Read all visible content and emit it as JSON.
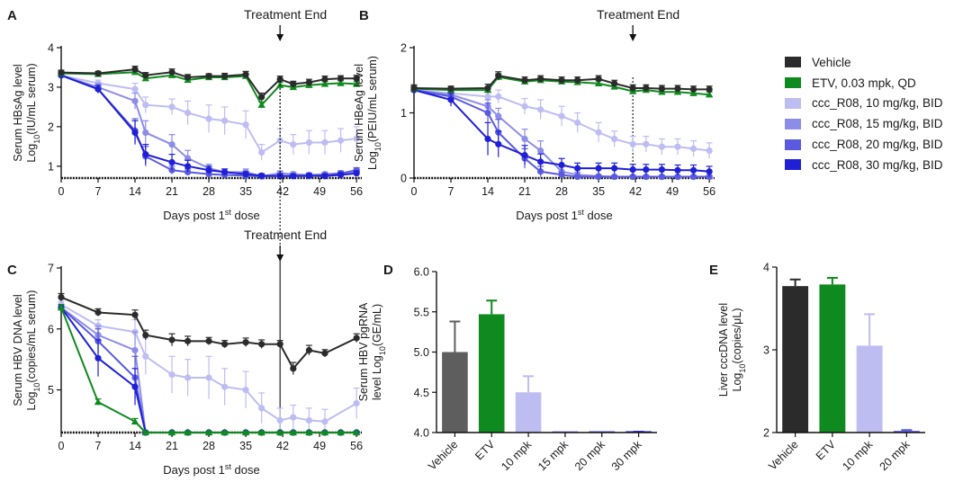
{
  "colors": {
    "vehicle": "#2b2b2b",
    "etv": "#0f8a1e",
    "mpk10": "#bdbdf2",
    "mpk15": "#8d8de8",
    "mpk20": "#5a5ae0",
    "mpk30": "#1f1fd6",
    "bar_vehicle": "#5e5e5e",
    "axis": "#111111"
  },
  "legend": [
    {
      "label": "Vehicle",
      "color_key": "vehicle"
    },
    {
      "label": "ETV, 0.03 mpk, QD",
      "color_key": "etv"
    },
    {
      "label": "ccc_R08, 10 mg/kg, BID",
      "color_key": "mpk10"
    },
    {
      "label": "ccc_R08, 15 mg/kg, BID",
      "color_key": "mpk15"
    },
    {
      "label": "ccc_R08, 20 mg/kg, BID",
      "color_key": "mpk20"
    },
    {
      "label": "ccc_R08, 30 mg/kg, BID",
      "color_key": "mpk30"
    }
  ],
  "chart_data": [
    {
      "id": "A",
      "panel_letter": "A",
      "type": "line",
      "ylabel_line1": "Serum HBsAg level",
      "ylabel_line2": [
        "Log",
        "10",
        "(IU/mL serum)"
      ],
      "xlabel": [
        "Days post 1",
        "st",
        " dose"
      ],
      "xticks": [
        0,
        7,
        14,
        21,
        28,
        35,
        42,
        49,
        56
      ],
      "yticks": [
        1,
        2,
        3,
        4
      ],
      "xlim": [
        0,
        57
      ],
      "ylim": [
        0.7,
        4
      ],
      "annotation": {
        "text": "Treatment End",
        "x": 41.5
      },
      "x": [
        0,
        7,
        12,
        14,
        16,
        18,
        21,
        24,
        28,
        31,
        35,
        38,
        41.5,
        44,
        47,
        50,
        53,
        56
      ],
      "series": [
        {
          "name": "Vehicle",
          "color_key": "vehicle",
          "values": [
            3.37,
            3.35,
            null,
            3.45,
            3.3,
            null,
            3.38,
            3.25,
            3.28,
            3.28,
            3.32,
            2.75,
            3.2,
            3.08,
            3.12,
            3.2,
            3.22,
            3.22
          ],
          "errors": [
            0.06,
            0.05,
            null,
            0.08,
            0.07,
            null,
            0.08,
            0.07,
            0.06,
            0.07,
            0.08,
            0.1,
            0.08,
            0.07,
            0.08,
            0.08,
            0.07,
            0.08
          ]
        },
        {
          "name": "ETV, 0.03 mpk, QD",
          "color_key": "etv",
          "values": [
            3.35,
            3.33,
            null,
            3.38,
            3.22,
            null,
            3.3,
            3.18,
            3.25,
            3.25,
            3.28,
            2.55,
            3.05,
            3.0,
            3.05,
            3.08,
            3.1,
            3.08
          ],
          "errors": [
            0.05,
            0.05,
            null,
            0.06,
            0.06,
            null,
            0.06,
            0.06,
            0.06,
            0.06,
            0.07,
            0.08,
            0.07,
            0.06,
            0.06,
            0.06,
            0.06,
            0.06
          ]
        },
        {
          "name": "ccc_R08, 10 mg/kg, BID",
          "color_key": "mpk10",
          "values": [
            3.3,
            3.1,
            null,
            2.95,
            2.55,
            null,
            2.5,
            2.35,
            2.2,
            2.15,
            2.05,
            1.35,
            1.65,
            1.55,
            1.6,
            1.6,
            1.65,
            1.7
          ],
          "errors": [
            0.06,
            0.08,
            null,
            0.15,
            0.2,
            null,
            0.2,
            0.3,
            0.35,
            0.35,
            0.35,
            0.2,
            0.3,
            0.25,
            0.3,
            0.3,
            0.3,
            0.3
          ]
        },
        {
          "name": "ccc_R08, 15 mg/kg, BID",
          "color_key": "mpk15",
          "values": [
            3.3,
            3.0,
            null,
            2.65,
            1.85,
            null,
            1.55,
            1.2,
            0.95,
            0.85,
            0.85,
            0.75,
            0.82,
            0.8,
            0.78,
            0.8,
            0.82,
            0.85
          ],
          "errors": [
            0.05,
            0.1,
            null,
            0.2,
            0.3,
            null,
            0.25,
            0.2,
            0.1,
            0.08,
            0.08,
            0.05,
            0.06,
            0.05,
            0.05,
            0.05,
            0.05,
            0.06
          ]
        },
        {
          "name": "ccc_R08, 20 mg/kg, BID",
          "color_key": "mpk20",
          "values": [
            3.3,
            2.95,
            null,
            1.9,
            1.25,
            null,
            0.9,
            0.85,
            0.8,
            0.78,
            0.76,
            0.74,
            0.76,
            0.75,
            0.75,
            0.77,
            0.82,
            0.9
          ],
          "errors": [
            0.05,
            0.1,
            null,
            0.3,
            0.25,
            null,
            0.1,
            0.08,
            0.06,
            0.05,
            0.05,
            0.04,
            0.05,
            0.05,
            0.05,
            0.05,
            0.06,
            0.06
          ]
        },
        {
          "name": "ccc_R08, 30 mg/kg, BID",
          "color_key": "mpk30",
          "values": [
            3.3,
            2.95,
            null,
            1.85,
            1.3,
            null,
            1.1,
            1.0,
            0.9,
            0.85,
            0.8,
            0.76,
            0.75,
            0.75,
            0.76,
            0.75,
            0.78,
            0.82
          ],
          "errors": [
            0.05,
            0.1,
            null,
            0.3,
            0.25,
            null,
            0.2,
            0.15,
            0.1,
            0.08,
            0.06,
            0.05,
            0.05,
            0.05,
            0.05,
            0.05,
            0.05,
            0.06
          ]
        }
      ]
    },
    {
      "id": "B",
      "panel_letter": "B",
      "type": "line",
      "ylabel_line1": "Serum HBeAg level",
      "ylabel_line2": [
        "Log",
        "10",
        "(PEIU/mL serum)"
      ],
      "xlabel": [
        "Days post 1",
        "st",
        " dose"
      ],
      "xticks": [
        0,
        7,
        14,
        21,
        28,
        35,
        42,
        49,
        56
      ],
      "yticks": [
        0,
        1,
        2
      ],
      "xlim": [
        0,
        57
      ],
      "ylim": [
        0,
        2
      ],
      "annotation": {
        "text": "Treatment End",
        "x": 41.5
      },
      "x": [
        0,
        7,
        12,
        14,
        16,
        18,
        21,
        24,
        28,
        31,
        35,
        38,
        41.5,
        44,
        47,
        50,
        53,
        56
      ],
      "series": [
        {
          "name": "Vehicle",
          "color_key": "vehicle",
          "values": [
            1.38,
            1.37,
            null,
            1.38,
            1.57,
            null,
            1.5,
            1.52,
            1.5,
            1.5,
            1.52,
            1.45,
            1.38,
            1.38,
            1.37,
            1.37,
            1.36,
            1.36
          ],
          "errors": [
            0.05,
            0.04,
            null,
            0.06,
            0.06,
            null,
            0.05,
            0.05,
            0.05,
            0.05,
            0.05,
            0.05,
            0.05,
            0.05,
            0.05,
            0.05,
            0.05,
            0.05
          ]
        },
        {
          "name": "ETV, 0.03 mpk, QD",
          "color_key": "etv",
          "values": [
            1.37,
            1.35,
            null,
            1.35,
            1.55,
            null,
            1.48,
            1.5,
            1.48,
            1.47,
            1.45,
            1.4,
            1.33,
            1.35,
            1.32,
            1.32,
            1.3,
            1.28
          ],
          "errors": [
            0.04,
            0.04,
            null,
            0.05,
            0.05,
            null,
            0.04,
            0.04,
            0.04,
            0.04,
            0.04,
            0.04,
            0.04,
            0.04,
            0.04,
            0.04,
            0.04,
            0.04
          ]
        },
        {
          "name": "ccc_R08, 10 mg/kg, BID",
          "color_key": "mpk10",
          "values": [
            1.35,
            1.3,
            null,
            1.25,
            1.25,
            null,
            1.1,
            1.05,
            0.95,
            0.85,
            0.7,
            0.6,
            0.52,
            0.52,
            0.48,
            0.48,
            0.45,
            0.42
          ],
          "errors": [
            0.05,
            0.06,
            null,
            0.08,
            0.1,
            null,
            0.12,
            0.15,
            0.15,
            0.15,
            0.15,
            0.12,
            0.12,
            0.12,
            0.12,
            0.12,
            0.12,
            0.12
          ]
        },
        {
          "name": "ccc_R08, 15 mg/kg, BID",
          "color_key": "mpk15",
          "values": [
            1.35,
            1.28,
            null,
            1.1,
            0.95,
            null,
            0.6,
            0.42,
            0.1,
            0.05,
            0.03,
            0.02,
            0.02,
            0.02,
            0.02,
            0.02,
            0.02,
            0.02
          ],
          "errors": [
            0.05,
            0.06,
            null,
            0.1,
            0.12,
            null,
            0.15,
            0.15,
            0.08,
            0.04,
            0.02,
            0.02,
            0.02,
            0.02,
            0.02,
            0.02,
            0.02,
            0.02
          ]
        },
        {
          "name": "ccc_R08, 20 mg/kg, BID",
          "color_key": "mpk20",
          "values": [
            1.35,
            1.25,
            null,
            1.0,
            0.7,
            null,
            0.3,
            0.1,
            0.05,
            0.02,
            0.02,
            0.02,
            0.02,
            0.02,
            0.02,
            0.02,
            0.02,
            0.02
          ],
          "errors": [
            0.05,
            0.08,
            null,
            0.15,
            0.2,
            null,
            0.15,
            0.08,
            0.04,
            0.02,
            0.02,
            0.02,
            0.02,
            0.02,
            0.02,
            0.02,
            0.02,
            0.02
          ]
        },
        {
          "name": "ccc_R08, 30 mg/kg, BID",
          "color_key": "mpk30",
          "values": [
            1.35,
            1.2,
            null,
            0.6,
            0.52,
            null,
            0.35,
            0.25,
            0.2,
            0.15,
            0.15,
            0.15,
            0.13,
            0.13,
            0.13,
            0.12,
            0.12,
            0.1
          ],
          "errors": [
            0.05,
            0.1,
            null,
            0.25,
            0.2,
            null,
            0.15,
            0.12,
            0.1,
            0.08,
            0.08,
            0.08,
            0.08,
            0.08,
            0.08,
            0.08,
            0.08,
            0.08
          ]
        }
      ]
    },
    {
      "id": "C",
      "panel_letter": "C",
      "type": "line",
      "ylabel_line1": "Serum HBV DNA level",
      "ylabel_line2": [
        "Log",
        "10",
        "(copies/mL serum)"
      ],
      "xlabel": [
        "Days post 1",
        "st",
        " dose"
      ],
      "xticks": [
        0,
        7,
        14,
        21,
        28,
        35,
        42,
        49,
        56
      ],
      "yticks": [
        5,
        6,
        7
      ],
      "xlim": [
        0,
        57
      ],
      "ylim": [
        4.3,
        7
      ],
      "annotation": {
        "text": "Treatment End",
        "x": 41.5
      },
      "x": [
        0,
        7,
        12,
        14,
        16,
        18,
        21,
        24,
        28,
        31,
        35,
        38,
        41.5,
        44,
        47,
        50,
        53,
        56
      ],
      "series": [
        {
          "name": "Vehicle",
          "color_key": "vehicle",
          "values": [
            6.52,
            6.27,
            null,
            6.23,
            5.9,
            null,
            5.82,
            5.8,
            5.8,
            5.75,
            5.78,
            5.75,
            5.75,
            5.35,
            5.65,
            5.6,
            null,
            5.85
          ],
          "errors": [
            0.06,
            0.06,
            null,
            0.08,
            0.08,
            null,
            0.1,
            0.08,
            0.06,
            0.06,
            0.07,
            0.07,
            0.06,
            0.1,
            0.08,
            0.06,
            null,
            0.07
          ]
        },
        {
          "name": "ETV, 0.03 mpk, QD",
          "color_key": "etv",
          "values": [
            6.35,
            4.8,
            null,
            4.48,
            4.3,
            null,
            4.3,
            4.3,
            4.3,
            4.3,
            4.3,
            4.3,
            4.3,
            4.3,
            4.3,
            4.3,
            4.3,
            4.3
          ],
          "errors": [
            0.05,
            0.05,
            null,
            0.05,
            0.02,
            null,
            0.02,
            0.02,
            0.02,
            0.02,
            0.02,
            0.02,
            0.02,
            0.02,
            0.02,
            0.02,
            0.02,
            0.02
          ]
        },
        {
          "name": "ccc_R08, 10 mg/kg, BID",
          "color_key": "mpk10",
          "values": [
            6.4,
            6.05,
            null,
            5.95,
            5.55,
            null,
            5.25,
            5.2,
            5.2,
            5.05,
            5.0,
            4.7,
            4.5,
            4.55,
            4.5,
            4.48,
            null,
            4.78
          ],
          "errors": [
            0.05,
            0.1,
            null,
            0.2,
            0.3,
            null,
            0.3,
            0.3,
            0.35,
            0.3,
            0.3,
            0.25,
            0.2,
            0.2,
            0.2,
            0.2,
            null,
            0.25
          ]
        },
        {
          "name": "ccc_R08, 15 mg/kg, BID",
          "color_key": "mpk15",
          "values": [
            6.35,
            5.9,
            null,
            5.65,
            4.3,
            null,
            4.3,
            4.3,
            4.3,
            4.3,
            4.3,
            4.3,
            4.3,
            4.3,
            4.3,
            4.3,
            4.3,
            4.3
          ],
          "errors": [
            0.05,
            0.15,
            null,
            0.3,
            0.02,
            null,
            0.02,
            0.02,
            0.02,
            0.02,
            0.02,
            0.02,
            0.02,
            0.02,
            0.02,
            0.02,
            0.02,
            0.02
          ]
        },
        {
          "name": "ccc_R08, 20 mg/kg, BID",
          "color_key": "mpk20",
          "values": [
            6.35,
            5.8,
            null,
            5.2,
            4.3,
            null,
            4.3,
            4.3,
            4.3,
            4.3,
            4.3,
            4.3,
            4.3,
            4.3,
            4.3,
            4.3,
            4.3,
            4.3
          ],
          "errors": [
            0.05,
            0.2,
            null,
            0.35,
            0.02,
            null,
            0.02,
            0.02,
            0.02,
            0.02,
            0.02,
            0.02,
            0.02,
            0.02,
            0.02,
            0.02,
            0.02,
            0.02
          ]
        },
        {
          "name": "ccc_R08, 30 mg/kg, BID",
          "color_key": "mpk30",
          "values": [
            6.35,
            5.52,
            null,
            5.05,
            4.3,
            null,
            4.3,
            4.3,
            4.3,
            4.3,
            4.3,
            4.3,
            4.3,
            4.3,
            4.3,
            4.3,
            4.3,
            4.3
          ],
          "errors": [
            0.05,
            0.3,
            null,
            0.3,
            0.02,
            null,
            0.02,
            0.02,
            0.02,
            0.02,
            0.02,
            0.02,
            0.02,
            0.02,
            0.02,
            0.02,
            0.02,
            0.02
          ]
        }
      ]
    },
    {
      "id": "D",
      "panel_letter": "D",
      "type": "bar",
      "ylabel_line1": "Serum HBV pgRNA",
      "ylabel_line2": [
        "level Log",
        "10",
        "(GE/mL)"
      ],
      "categories": [
        "Vehicle",
        "ETV",
        "10 mpk",
        "15 mpk",
        "20 mpk",
        "30 mpk"
      ],
      "values": [
        5.0,
        5.47,
        4.5,
        4.0,
        4.0,
        4.0
      ],
      "errors": [
        0.38,
        0.17,
        0.2,
        0.0,
        0.0,
        0.01
      ],
      "bar_color_keys": [
        "bar_vehicle",
        "etv",
        "mpk10",
        "mpk15",
        "mpk20",
        "mpk30"
      ],
      "yticks": [
        4.0,
        4.5,
        5.0,
        5.5,
        6.0
      ],
      "ytick_labels": [
        "4.0",
        "4.5",
        "5.0",
        "5.5",
        "6.0"
      ],
      "ylim": [
        4.0,
        6.0
      ]
    },
    {
      "id": "E",
      "panel_letter": "E",
      "type": "bar",
      "ylabel_line1": "Liver cccDNA level",
      "ylabel_line2": [
        "Log",
        "10",
        "(copies/μL)"
      ],
      "categories": [
        "Vehicle",
        "ETV",
        "10 mpk",
        "20 mpk"
      ],
      "values": [
        3.77,
        3.79,
        3.05,
        2.02
      ],
      "errors": [
        0.08,
        0.08,
        0.38,
        0.01
      ],
      "bar_color_keys": [
        "vehicle",
        "etv",
        "mpk10",
        "mpk20"
      ],
      "yticks": [
        2,
        3,
        4
      ],
      "ytick_labels": [
        "2",
        "3",
        "4"
      ],
      "ylim": [
        2,
        4
      ]
    }
  ]
}
